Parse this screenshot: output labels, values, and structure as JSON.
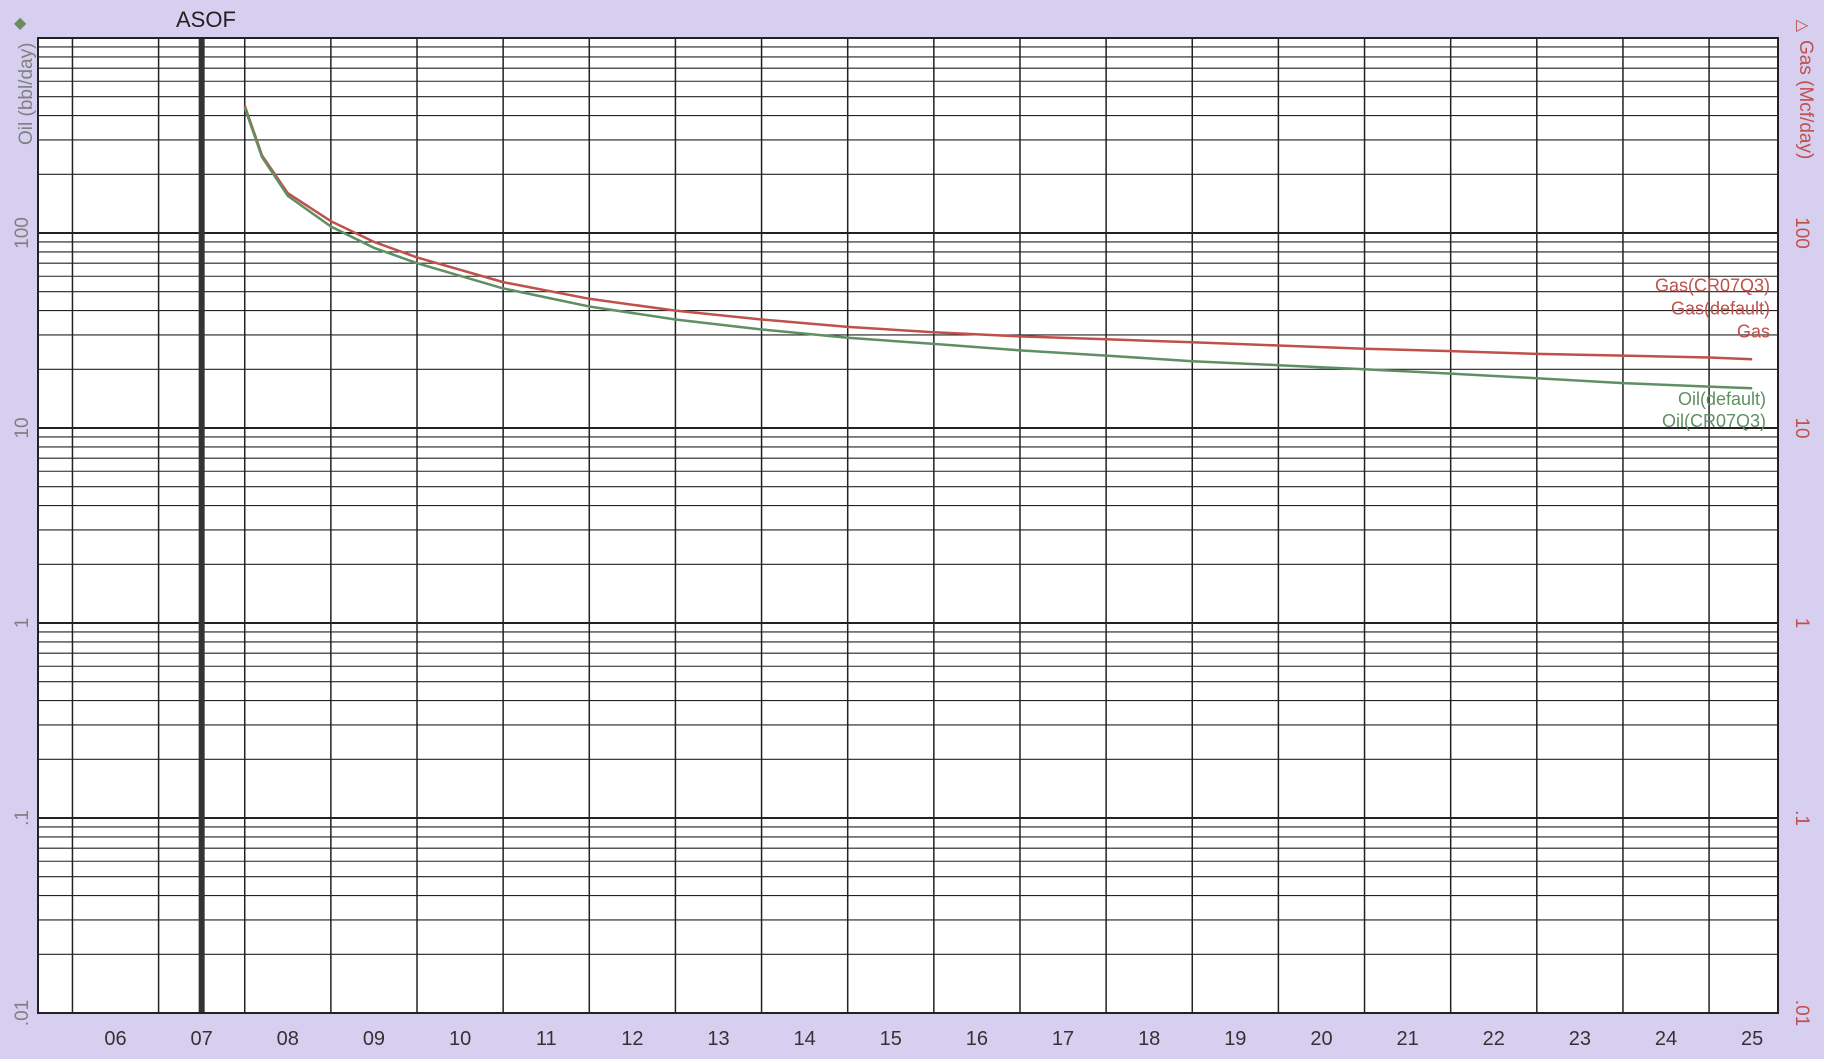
{
  "marker_label": "ASOF",
  "y_left_title": "Oil (bbl/day)",
  "y_right_title": "Gas (Mcf/day)",
  "y_left_ticks": [
    "100",
    "10",
    "1",
    ".1",
    ".01"
  ],
  "y_right_ticks": [
    "100",
    "10",
    "1",
    ".1",
    ".01"
  ],
  "colors": {
    "background": "#d7cff0",
    "plot": "#ffffff",
    "grid": "#222222",
    "asof_line": "#333333",
    "oil": "#5f8f62",
    "gas": "#c0504a",
    "left_axis": "#808080",
    "right_axis": "#c0504a"
  },
  "chart_data": {
    "type": "line",
    "title": "",
    "xlabel": "",
    "ylabel": "Oil (bbl/day)",
    "ylabel_right": "Gas (Mcf/day)",
    "x_scale": "time (years)",
    "y_scale": "log",
    "xlim": [
      2005.6,
      2025.8
    ],
    "ylim": [
      0.01,
      1000
    ],
    "x_tick_labels": [
      "06",
      "07",
      "08",
      "09",
      "10",
      "11",
      "12",
      "13",
      "14",
      "15",
      "16",
      "17",
      "18",
      "19",
      "20",
      "21",
      "22",
      "23",
      "24",
      "25"
    ],
    "grid": true,
    "asof": 2007.5,
    "series": [
      {
        "name": "Gas",
        "curve_labels": [
          "Gas(CR07Q3)",
          "Gas(default)",
          "Gas"
        ],
        "color": "#c0504a",
        "x": [
          2008.0,
          2008.2,
          2008.5,
          2009.0,
          2009.5,
          2010.0,
          2011.0,
          2012.0,
          2013.0,
          2014.0,
          2015.0,
          2016.0,
          2017.0,
          2018.0,
          2019.0,
          2020.0,
          2021.0,
          2022.0,
          2023.0,
          2024.0,
          2025.0,
          2025.5
        ],
        "y": [
          450,
          250,
          160,
          115,
          90,
          75,
          56,
          46,
          40,
          36,
          33,
          31,
          29.5,
          28.5,
          27.5,
          26.5,
          25.5,
          24.8,
          24,
          23.5,
          23,
          22.5
        ]
      },
      {
        "name": "Oil",
        "curve_labels": [
          "Oil(default)",
          "Oil(CR07Q3)"
        ],
        "color": "#5f8f62",
        "x": [
          2008.0,
          2008.2,
          2008.5,
          2009.0,
          2009.5,
          2010.0,
          2011.0,
          2012.0,
          2013.0,
          2014.0,
          2015.0,
          2016.0,
          2017.0,
          2018.0,
          2019.0,
          2020.0,
          2021.0,
          2022.0,
          2023.0,
          2024.0,
          2025.0,
          2025.5
        ],
        "y": [
          440,
          245,
          155,
          108,
          84,
          70,
          52,
          42,
          36,
          32,
          29,
          27,
          25,
          23.5,
          22,
          21,
          20,
          19,
          18,
          17,
          16.3,
          16
        ]
      }
    ]
  }
}
